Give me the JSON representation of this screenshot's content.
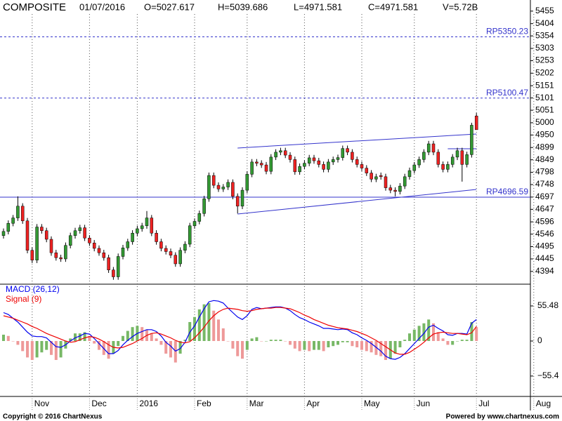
{
  "chart_data": [
    {
      "type": "candlestick",
      "title": "COMPOSITE",
      "date": "01/07/2016",
      "ohlcv": [
        "O=5027.617",
        "H=5039.686",
        "L=4971.581",
        "C=4971.581",
        "V=5.72B"
      ],
      "categories": [
        null,
        null,
        null,
        null,
        null,
        null,
        "Nov",
        null,
        null,
        null,
        null,
        null,
        null,
        null,
        null,
        null,
        null,
        null,
        "Dec",
        null,
        null,
        null,
        null,
        null,
        null,
        null,
        null,
        null,
        "2016",
        null,
        null,
        null,
        null,
        null,
        null,
        null,
        null,
        null,
        null,
        null,
        "Feb",
        null,
        null,
        null,
        null,
        null,
        null,
        null,
        null,
        null,
        null,
        "Mar",
        null,
        null,
        null,
        null,
        null,
        null,
        null,
        null,
        null,
        null,
        null,
        "Apr",
        null,
        null,
        null,
        null,
        null,
        null,
        null,
        null,
        null,
        null,
        null,
        "May",
        null,
        null,
        null,
        null,
        null,
        null,
        null,
        null,
        null,
        null,
        "Jun",
        null,
        null,
        null,
        null,
        null,
        null,
        null,
        null,
        null,
        null,
        null,
        null,
        "Jul",
        null,
        null,
        null,
        null,
        null,
        null,
        null,
        null,
        null,
        null,
        null,
        "Aug"
      ],
      "open": [
        4540,
        4557,
        4590,
        4612,
        4660,
        4600,
        4480,
        4440,
        4575,
        4560,
        4525,
        4470,
        4450,
        4445,
        4500,
        4540,
        4560,
        4572,
        4530,
        4510,
        4488,
        4470,
        4450,
        4400,
        4372,
        4455,
        4490,
        4515,
        4550,
        4568,
        4580,
        4612,
        4550,
        4515,
        4488,
        4475,
        4460,
        4425,
        4480,
        4505,
        4580,
        4598,
        4630,
        4690,
        4785,
        4745,
        4730,
        4738,
        4757,
        4700,
        4660,
        4725,
        4790,
        4840,
        4835,
        4828,
        4802,
        4860,
        4880,
        4886,
        4868,
        4850,
        4800,
        4822,
        4835,
        4857,
        4845,
        4830,
        4810,
        4840,
        4850,
        4858,
        4895,
        4880,
        4850,
        4830,
        4815,
        4795,
        4770,
        4785,
        4780,
        4735,
        4725,
        4720,
        4742,
        4780,
        4805,
        4828,
        4850,
        4880,
        4914,
        4880,
        4830,
        4810,
        4830,
        4860,
        4886,
        4830,
        4870,
        5027.617,
        null,
        null,
        null,
        null,
        null,
        null,
        null,
        null,
        null,
        null,
        null,
        null
      ],
      "high": [
        4569,
        4602,
        4624,
        4700,
        4672,
        4612,
        4492,
        4587,
        4587,
        4572,
        4537,
        4482,
        4462,
        4512,
        4552,
        4572,
        4584,
        4584,
        4542,
        4522,
        4500,
        4482,
        4462,
        4412,
        4467,
        4502,
        4527,
        4562,
        4580,
        4592,
        4640,
        4624,
        4562,
        4527,
        4500,
        4487,
        4472,
        4492,
        4517,
        4592,
        4610,
        4642,
        4702,
        4797,
        4797,
        4757,
        4750,
        4769,
        4769,
        4712,
        4737,
        4802,
        4852,
        4852,
        4847,
        4840,
        4872,
        4892,
        4898,
        4898,
        4880,
        4862,
        4834,
        4847,
        4869,
        4869,
        4857,
        4842,
        4852,
        4862,
        4870,
        4907,
        4907,
        4892,
        4862,
        4842,
        4827,
        4807,
        4792,
        4797,
        4792,
        4747,
        4737,
        4754,
        4792,
        4817,
        4840,
        4862,
        4892,
        4926,
        4926,
        4892,
        4842,
        4842,
        4872,
        4898,
        4898,
        4882,
        5000,
        5039.686,
        null,
        null,
        null,
        null,
        null,
        null,
        null,
        null,
        null,
        null,
        null,
        null
      ],
      "low": [
        4528,
        4545,
        4578,
        4600,
        4588,
        4468,
        4428,
        4428,
        4548,
        4513,
        4458,
        4438,
        4433,
        4433,
        4488,
        4528,
        4548,
        4518,
        4498,
        4476,
        4458,
        4438,
        4388,
        4360,
        4360,
        4443,
        4478,
        4503,
        4538,
        4556,
        4568,
        4538,
        4503,
        4476,
        4463,
        4448,
        4413,
        4413,
        4468,
        4493,
        4568,
        4586,
        4618,
        4678,
        4733,
        4718,
        4718,
        4726,
        4688,
        4630,
        4648,
        4713,
        4778,
        4823,
        4816,
        4790,
        4790,
        4848,
        4868,
        4856,
        4838,
        4788,
        4788,
        4810,
        4823,
        4833,
        4818,
        4798,
        4798,
        4828,
        4838,
        4846,
        4868,
        4838,
        4818,
        4803,
        4783,
        4758,
        4758,
        4768,
        4723,
        4713,
        4700,
        4708,
        4730,
        4768,
        4793,
        4816,
        4838,
        4868,
        4868,
        4818,
        4798,
        4798,
        4818,
        4848,
        4760,
        4818,
        4858,
        4971.581,
        null,
        null,
        null,
        null,
        null,
        null,
        null,
        null,
        null,
        null,
        null,
        null
      ],
      "close": [
        4557,
        4590,
        4612,
        4660,
        4600,
        4480,
        4440,
        4575,
        4560,
        4525,
        4470,
        4450,
        4445,
        4500,
        4540,
        4560,
        4572,
        4530,
        4510,
        4488,
        4470,
        4450,
        4400,
        4372,
        4455,
        4490,
        4515,
        4550,
        4568,
        4580,
        4612,
        4550,
        4515,
        4488,
        4475,
        4460,
        4425,
        4480,
        4505,
        4580,
        4598,
        4630,
        4690,
        4785,
        4745,
        4730,
        4738,
        4757,
        4700,
        4660,
        4725,
        4790,
        4840,
        4835,
        4828,
        4802,
        4860,
        4880,
        4886,
        4868,
        4850,
        4800,
        4822,
        4835,
        4857,
        4845,
        4830,
        4810,
        4840,
        4850,
        4858,
        4895,
        4880,
        4850,
        4830,
        4815,
        4795,
        4770,
        4780,
        4780,
        4735,
        4725,
        4720,
        4742,
        4780,
        4805,
        4828,
        4850,
        4880,
        4914,
        4880,
        4830,
        4810,
        4830,
        4860,
        4886,
        4830,
        4870,
        4990,
        4971.581,
        null,
        null,
        null,
        null,
        null,
        null,
        null,
        null,
        null,
        null,
        null,
        null
      ],
      "up_color": "#339933",
      "down_color": "#ee2222",
      "ylim": [
        4342,
        5486
      ],
      "yticks": [
        5455,
        5404,
        5354,
        5303,
        5253,
        5202,
        5151,
        5101,
        5051,
        5000,
        4950,
        4899,
        4849,
        4798,
        4748,
        4697,
        4647,
        4596,
        4546,
        4495,
        4445,
        4394
      ],
      "ref_lines": [
        {
          "value": 5350.23,
          "label": "RP5350.23",
          "style": "dashed"
        },
        {
          "value": 5100.47,
          "label": "RP5100.47",
          "style": "dashed"
        },
        {
          "value": 4696.59,
          "label": "RP4696.59",
          "style": "solid"
        }
      ],
      "trend_lines": [
        {
          "x": [
            49,
            99
          ],
          "y": [
            4897,
            4954
          ]
        },
        {
          "x": [
            49,
            99
          ],
          "y": [
            4628,
            4728
          ]
        },
        {
          "x": [
            93,
            99
          ],
          "y": [
            4894,
            4894
          ]
        }
      ],
      "line_color": "#3333cc"
    },
    {
      "type": "macd",
      "series": [
        {
          "name": "MACD (26,12)",
          "color": "#0000ee",
          "values": [
            45,
            42,
            36,
            30,
            22,
            14,
            8,
            7,
            7,
            5,
            -2,
            -9,
            -10,
            -6,
            0,
            5,
            8,
            12,
            11,
            4,
            -4,
            -12,
            -20,
            -20,
            -15,
            -6,
            1,
            7,
            12,
            15,
            18,
            18,
            15,
            8,
            -2,
            -8,
            -16,
            -12,
            -2,
            14,
            24,
            38,
            51,
            62,
            64,
            63,
            60,
            52,
            45,
            38,
            34,
            40,
            50,
            53,
            51,
            52,
            53,
            54,
            54,
            52,
            48,
            42,
            37,
            34,
            30,
            27,
            24,
            20,
            20,
            19,
            18,
            19,
            18,
            13,
            10,
            5,
            1,
            -4,
            -10,
            -16,
            -24,
            -28,
            -29,
            -26,
            -20,
            -12,
            -4,
            4,
            12,
            22,
            25,
            20,
            16,
            10,
            9,
            12,
            12,
            11,
            28,
            34,
            null,
            null,
            null,
            null,
            null,
            null,
            null,
            null,
            null,
            null,
            null,
            null
          ]
        },
        {
          "name": "Signal (9)",
          "color": "#ee0000",
          "values": [
            40,
            38,
            36,
            33,
            30,
            27,
            23,
            20,
            16,
            12,
            9,
            6,
            3,
            0,
            -2,
            -1,
            2,
            5,
            7,
            6,
            3,
            -1,
            -6,
            -10,
            -11,
            -10,
            -7,
            -4,
            0,
            4,
            9,
            12,
            13,
            11,
            8,
            5,
            1,
            -2,
            -3,
            -1,
            5,
            13,
            22,
            32,
            40,
            46,
            50,
            52,
            51,
            50,
            48,
            47,
            48,
            50,
            51,
            52,
            52,
            53,
            53,
            52,
            51,
            48,
            45,
            41,
            38,
            34,
            31,
            28,
            25,
            23,
            21,
            20,
            19,
            17,
            15,
            12,
            9,
            5,
            1,
            -4,
            -9,
            -14,
            -19,
            -21,
            -21,
            -18,
            -13,
            -8,
            -2,
            5,
            11,
            13,
            14,
            13,
            12,
            12,
            11,
            10,
            13,
            23,
            null,
            null,
            null,
            null,
            null,
            null,
            null,
            null,
            null,
            null,
            null,
            null
          ]
        }
      ],
      "histogram": {
        "values": [
          10,
          8,
          0,
          -6,
          -16,
          -26,
          -30,
          -26,
          -18,
          -14,
          -22,
          -30,
          -26,
          -12,
          4,
          12,
          12,
          14,
          8,
          -4,
          -14,
          -22,
          -28,
          -20,
          -8,
          8,
          16,
          22,
          24,
          22,
          18,
          12,
          4,
          -6,
          -20,
          -26,
          -34,
          -20,
          2,
          30,
          38,
          50,
          58,
          60,
          48,
          34,
          20,
          0,
          -12,
          -24,
          -28,
          -14,
          4,
          6,
          0,
          0,
          2,
          2,
          2,
          0,
          -6,
          -12,
          -16,
          -14,
          -16,
          -14,
          -14,
          -16,
          -10,
          -8,
          -6,
          -2,
          -2,
          -8,
          -10,
          -14,
          -16,
          -18,
          -22,
          -24,
          -30,
          -28,
          -20,
          -10,
          2,
          12,
          18,
          24,
          28,
          34,
          28,
          14,
          4,
          -6,
          -6,
          0,
          2,
          2,
          30,
          22,
          null,
          null,
          null,
          null,
          null,
          null,
          null,
          null,
          null,
          null,
          null,
          null
        ],
        "up_color": "#77b866",
        "down_color": "#ee9999"
      },
      "ylim": [
        -87.7,
        89.9
      ],
      "yticks": [
        55.48,
        0,
        {
          "value": -55.4,
          "label": "−55.4"
        }
      ]
    }
  ],
  "footer": {
    "copyright": "Copyright © 2016 ChartNexus",
    "powered_by": "Powered by www.chartnexus.com"
  }
}
